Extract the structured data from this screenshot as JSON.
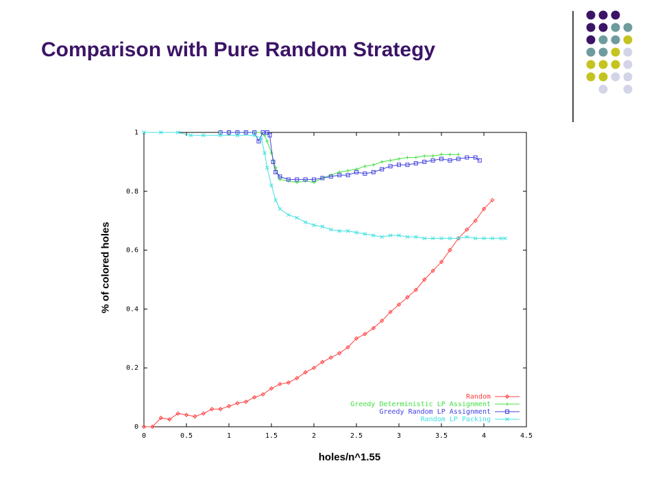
{
  "slide": {
    "title": "Comparison with Pure Random Strategy"
  },
  "decor": {
    "palette": [
      "#3b1466",
      "#6e9b9e",
      "#c4c420",
      "#d4d4e8"
    ]
  },
  "chart_data": {
    "type": "line",
    "title": "",
    "xlabel": "holes/n^1.55",
    "ylabel": "% of colored holes",
    "xlim": [
      0,
      4.5
    ],
    "ylim": [
      0,
      1
    ],
    "xticks": [
      "0",
      "0.5",
      "1",
      "1.5",
      "2",
      "2.5",
      "3",
      "3.5",
      "4",
      "4.5"
    ],
    "yticks": [
      "0",
      "0.2",
      "0.4",
      "0.6",
      "0.8",
      "1"
    ],
    "grid": false,
    "legend_position": "bottom-right",
    "series": [
      {
        "name": "Random",
        "color": "#ff4040",
        "marker": "diamond",
        "x": [
          0,
          0.1,
          0.2,
          0.3,
          0.4,
          0.5,
          0.6,
          0.7,
          0.8,
          0.9,
          1.0,
          1.1,
          1.2,
          1.3,
          1.4,
          1.5,
          1.6,
          1.7,
          1.8,
          1.9,
          2.0,
          2.1,
          2.2,
          2.3,
          2.4,
          2.5,
          2.6,
          2.7,
          2.8,
          2.9,
          3.0,
          3.1,
          3.2,
          3.3,
          3.4,
          3.5,
          3.6,
          3.7,
          3.8,
          3.9,
          4.0,
          4.1
        ],
        "y": [
          0,
          0,
          0.03,
          0.025,
          0.045,
          0.04,
          0.035,
          0.045,
          0.06,
          0.06,
          0.07,
          0.08,
          0.085,
          0.1,
          0.11,
          0.13,
          0.145,
          0.15,
          0.165,
          0.185,
          0.2,
          0.22,
          0.235,
          0.25,
          0.27,
          0.3,
          0.315,
          0.335,
          0.36,
          0.39,
          0.415,
          0.44,
          0.465,
          0.5,
          0.53,
          0.56,
          0.6,
          0.64,
          0.67,
          0.7,
          0.74,
          0.77
        ]
      },
      {
        "name": "Greedy Deterministic LP Assignment",
        "color": "#40e040",
        "marker": "plus",
        "x": [
          0.9,
          1.0,
          1.1,
          1.2,
          1.3,
          1.38,
          1.42,
          1.45,
          1.5,
          1.55,
          1.6,
          1.7,
          1.8,
          1.9,
          2.0,
          2.1,
          2.2,
          2.3,
          2.4,
          2.5,
          2.6,
          2.7,
          2.8,
          2.9,
          3.0,
          3.1,
          3.2,
          3.3,
          3.4,
          3.5,
          3.6,
          3.7
        ],
        "y": [
          1,
          1,
          1,
          1,
          1,
          1,
          0.99,
          0.97,
          0.93,
          0.88,
          0.84,
          0.835,
          0.83,
          0.835,
          0.83,
          0.845,
          0.855,
          0.865,
          0.87,
          0.875,
          0.885,
          0.89,
          0.9,
          0.905,
          0.91,
          0.915,
          0.915,
          0.92,
          0.92,
          0.925,
          0.925,
          0.925
        ]
      },
      {
        "name": "Greedy Random LP Assignment",
        "color": "#4040e0",
        "marker": "square",
        "x": [
          0.9,
          1.0,
          1.1,
          1.2,
          1.3,
          1.35,
          1.4,
          1.45,
          1.48,
          1.52,
          1.55,
          1.6,
          1.7,
          1.8,
          1.9,
          2.0,
          2.1,
          2.2,
          2.3,
          2.4,
          2.5,
          2.6,
          2.7,
          2.8,
          2.9,
          3.0,
          3.1,
          3.2,
          3.3,
          3.4,
          3.5,
          3.6,
          3.7,
          3.8,
          3.9,
          3.95
        ],
        "y": [
          1,
          1,
          1,
          1,
          1,
          0.97,
          1,
          1,
          0.99,
          0.9,
          0.865,
          0.85,
          0.84,
          0.84,
          0.84,
          0.84,
          0.845,
          0.85,
          0.855,
          0.855,
          0.865,
          0.86,
          0.865,
          0.875,
          0.885,
          0.89,
          0.89,
          0.895,
          0.9,
          0.905,
          0.91,
          0.905,
          0.91,
          0.915,
          0.915,
          0.905
        ]
      },
      {
        "name": "Random LP Packing",
        "color": "#40e0e0",
        "marker": "cross",
        "x": [
          0,
          0.2,
          0.4,
          0.55,
          0.7,
          0.9,
          1.1,
          1.3,
          1.38,
          1.42,
          1.45,
          1.5,
          1.55,
          1.6,
          1.7,
          1.8,
          1.9,
          2.0,
          2.1,
          2.2,
          2.3,
          2.4,
          2.5,
          2.6,
          2.7,
          2.8,
          2.9,
          3.0,
          3.1,
          3.2,
          3.3,
          3.4,
          3.5,
          3.6,
          3.7,
          3.8,
          3.9,
          4.0,
          4.1,
          4.2,
          4.25
        ],
        "y": [
          1,
          1,
          1,
          0.99,
          0.99,
          0.99,
          0.99,
          0.99,
          0.98,
          0.93,
          0.88,
          0.82,
          0.77,
          0.74,
          0.72,
          0.71,
          0.695,
          0.685,
          0.68,
          0.67,
          0.665,
          0.665,
          0.66,
          0.655,
          0.65,
          0.645,
          0.65,
          0.65,
          0.645,
          0.645,
          0.64,
          0.64,
          0.64,
          0.64,
          0.64,
          0.645,
          0.64,
          0.64,
          0.64,
          0.64,
          0.64
        ]
      }
    ]
  }
}
